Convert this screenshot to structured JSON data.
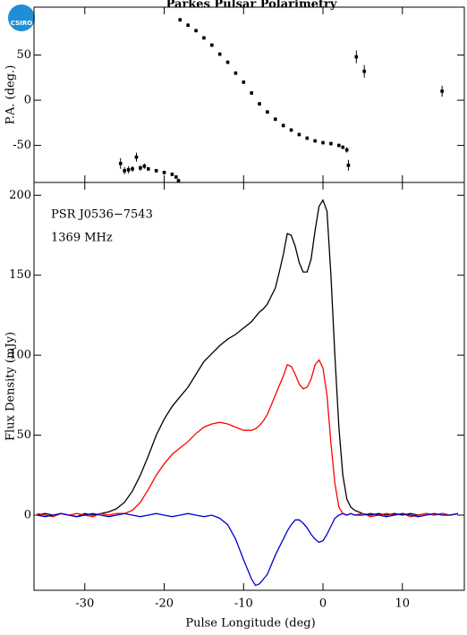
{
  "logo": "CSIRO",
  "chart_data": [
    {
      "type": "scatter",
      "title": "Parkes Pulsar Polarimetry",
      "ylabel": "P.A. (deg.)",
      "color": "#000000",
      "x": [
        -25.5,
        -25,
        -24.5,
        -24,
        -23.5,
        -23,
        -22.5,
        -22,
        -21,
        -20,
        -19,
        -18.5,
        -18.2,
        -18,
        -17,
        -16,
        -15,
        -14,
        -13,
        -12,
        -11,
        -10,
        -9,
        -8,
        -7,
        -6,
        -5,
        -4,
        -3,
        -2,
        -1,
        0,
        1,
        2,
        2.5,
        3,
        3.2,
        4.2,
        5.2,
        15
      ],
      "values": [
        -70,
        -78,
        -77,
        -76,
        -63,
        -75,
        -73,
        -76,
        -78,
        -80,
        -82,
        -85,
        -89,
        89,
        83,
        77,
        69,
        61,
        51,
        42,
        30,
        20,
        8,
        -4,
        -13,
        -21,
        -28,
        -33,
        -38,
        -42,
        -45,
        -47,
        -48,
        -50,
        -52,
        -55,
        -72,
        48,
        32,
        10
      ],
      "errors": [
        6,
        4,
        4,
        3,
        5,
        3,
        3,
        2,
        2,
        2,
        2,
        2,
        2,
        2,
        2,
        2,
        2,
        2,
        2,
        2,
        2,
        2,
        2,
        2,
        2,
        2,
        2,
        2,
        2,
        2,
        2,
        2,
        2,
        2,
        2,
        3,
        6,
        7,
        7,
        6
      ],
      "xlim": [
        -36.4,
        17.8
      ],
      "xticks": [
        -30,
        -20,
        -10,
        0,
        10
      ],
      "ylim": [
        -91,
        103
      ],
      "yticks": [
        -50,
        0,
        50
      ]
    },
    {
      "type": "line",
      "xlabel": "Pulse Longitude (deg)",
      "ylabel": "Flux Density (mJy)",
      "annotations": [
        "PSR J0536−7543",
        "1369 MHz"
      ],
      "x": [
        -36,
        -35,
        -34,
        -33,
        -32,
        -31,
        -30,
        -29,
        -28,
        -27,
        -26,
        -25,
        -24,
        -23,
        -22,
        -21,
        -20,
        -19,
        -18,
        -17,
        -16,
        -15,
        -14,
        -13,
        -12,
        -11,
        -10,
        -9,
        -8.5,
        -8,
        -7.5,
        -7,
        -6.5,
        -6,
        -5.5,
        -5,
        -4.5,
        -4,
        -3.5,
        -3,
        -2.5,
        -2,
        -1.5,
        -1,
        -0.5,
        0,
        0.5,
        1,
        1.5,
        2,
        2.5,
        3,
        3.5,
        4,
        5,
        6,
        7,
        8,
        9,
        10,
        11,
        12,
        13,
        14,
        15,
        16,
        17
      ],
      "series": [
        {
          "color": "#000000",
          "values": [
            0,
            1,
            0,
            1,
            0,
            -1,
            1,
            0,
            1,
            2,
            4,
            8,
            15,
            25,
            37,
            50,
            60,
            68,
            74,
            80,
            88,
            96,
            101,
            106,
            110,
            113,
            117,
            121,
            124,
            127,
            129,
            132,
            137,
            142,
            152,
            163,
            176,
            175,
            168,
            158,
            152,
            152,
            160,
            178,
            193,
            197,
            190,
            150,
            100,
            55,
            25,
            10,
            5,
            3,
            1,
            0,
            1,
            0,
            1,
            0,
            1,
            0,
            1,
            0,
            1,
            0,
            1
          ]
        },
        {
          "color": "#ff0000",
          "values": [
            1,
            0,
            -1,
            1,
            0,
            1,
            0,
            -1,
            1,
            0,
            1,
            1,
            3,
            8,
            16,
            25,
            32,
            38,
            42,
            46,
            51,
            55,
            57,
            58,
            57,
            55,
            53,
            53,
            54,
            56,
            59,
            63,
            69,
            75,
            81,
            87,
            94,
            93,
            88,
            82,
            79,
            80,
            85,
            94,
            97,
            92,
            75,
            45,
            20,
            5,
            1,
            0,
            1,
            0,
            1,
            -1,
            0,
            1,
            0,
            1,
            -1,
            0,
            1,
            0,
            1,
            0,
            1
          ]
        },
        {
          "color": "#0000cc",
          "values": [
            0,
            -1,
            0,
            1,
            0,
            -1,
            0,
            1,
            0,
            -1,
            0,
            1,
            0,
            -1,
            0,
            1,
            0,
            -1,
            0,
            1,
            0,
            -1,
            0,
            -2,
            -6,
            -15,
            -28,
            -40,
            -44,
            -43,
            -40,
            -37,
            -31,
            -25,
            -20,
            -15,
            -10,
            -6,
            -3,
            -3,
            -5,
            -8,
            -12,
            -15,
            -17,
            -16,
            -12,
            -7,
            -2,
            0,
            1,
            0,
            1,
            0,
            0,
            1,
            0,
            -1,
            0,
            1,
            0,
            -1,
            0,
            1,
            0,
            0,
            1
          ]
        }
      ],
      "xlim": [
        -36.4,
        17.8
      ],
      "xticks": [
        -30,
        -20,
        -10,
        0,
        10
      ],
      "ylim": [
        -47,
        208
      ],
      "yticks": [
        0,
        50,
        100,
        150,
        200
      ]
    }
  ]
}
